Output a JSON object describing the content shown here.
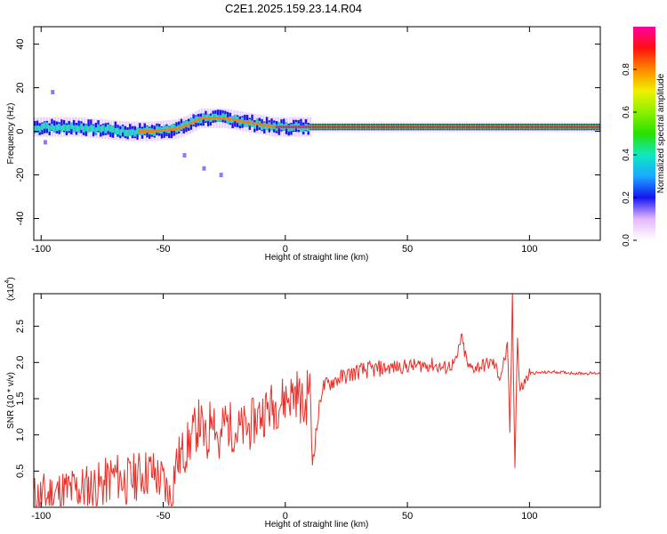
{
  "title": "C2E1.2025.159.23.14.R04",
  "colors": {
    "snr_line": "#e8302a",
    "background": "#ffffff",
    "axis": "#000000"
  },
  "chart_data": [
    {
      "type": "heatmap",
      "xlabel": "Height of straight line (km)",
      "ylabel": "Frequency (Hz)",
      "xlim": [
        -103,
        129
      ],
      "ylim": [
        -50,
        48
      ],
      "x_ticks": [
        "-100",
        "-50",
        "0",
        "50",
        "100"
      ],
      "y_ticks": [
        "40",
        "20",
        "0",
        "-20",
        "-40"
      ],
      "colorbar": {
        "label": "Normalized spectral amplitude",
        "range": [
          0,
          1
        ],
        "ticks": [
          "0.0",
          "0.2",
          "0.4",
          "0.6",
          "0.8"
        ]
      },
      "ridge": {
        "x": [
          -103,
          -95,
          -85,
          -75,
          -65,
          -55,
          -45,
          -40,
          -35,
          -30,
          -25,
          -20,
          -15,
          -10,
          -5,
          0,
          10,
          20,
          30,
          50,
          70,
          90,
          100,
          129
        ],
        "y": [
          2,
          2,
          2,
          1,
          0,
          0,
          1,
          3,
          6,
          6,
          6,
          5,
          4,
          3,
          2,
          2,
          2,
          2,
          2,
          2,
          2,
          2,
          2,
          2
        ]
      }
    },
    {
      "type": "line",
      "xlabel": "Height of straight line (km)",
      "ylabel": "SNR (10 * v/v)",
      "y_multiplier": "(x10",
      "y_multiplier_exp": "4",
      "unit_suffix": ")",
      "xlim": [
        -103,
        129
      ],
      "ylim": [
        0,
        2.95
      ],
      "x_ticks": [
        "-100",
        "-50",
        "0",
        "50",
        "100"
      ],
      "y_ticks": [
        "0.5",
        "1.0",
        "1.5",
        "2.0",
        "2.5"
      ],
      "series": [
        {
          "x": [
            -103,
            -95,
            -85,
            -75,
            -70,
            -65,
            -60,
            -55,
            -50,
            -47,
            -45,
            -40,
            -35,
            -32,
            -30,
            -27,
            -25,
            -20,
            -15,
            -10,
            -5,
            0,
            5,
            8,
            10,
            11,
            15,
            20,
            25,
            30,
            40,
            50,
            60,
            65,
            70,
            72,
            75,
            80,
            85,
            88,
            91,
            92,
            93,
            94,
            95,
            96,
            100,
            110,
            120,
            129
          ],
          "y": [
            0.12,
            0.18,
            0.25,
            0.3,
            0.45,
            0.35,
            0.45,
            0.5,
            0.35,
            0.1,
            0.6,
            0.85,
            1.2,
            0.8,
            1.45,
            0.8,
            1.2,
            1.05,
            1.1,
            1.3,
            1.4,
            1.5,
            1.6,
            1.3,
            1.85,
            0.6,
            1.65,
            1.75,
            1.82,
            1.88,
            1.92,
            1.95,
            1.97,
            1.92,
            2.0,
            2.35,
            1.92,
            1.95,
            2.0,
            1.8,
            2.2,
            1.0,
            2.9,
            0.5,
            2.4,
            1.6,
            1.85,
            1.87,
            1.85,
            1.85
          ]
        }
      ]
    }
  ]
}
